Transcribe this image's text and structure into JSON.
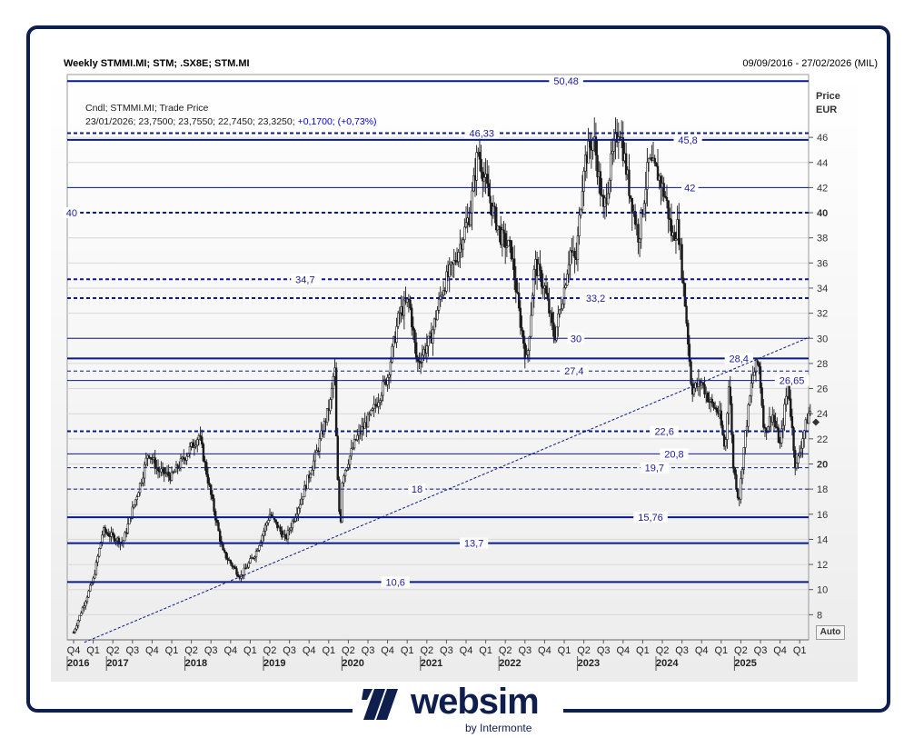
{
  "header": {
    "title": "Weekly STMMI.MI; STM; .SX8E; STM.MI",
    "date_range": "09/09/2016 - 27/02/2026 (MIL)"
  },
  "legend": {
    "line1": "Cndl; STMMI.MI; Trade Price",
    "line2_values": "23/01/2026; 23,7500; 23,7550; 22,7450; 23,3250;",
    "line2_change": "+0,1700; (+0,73%)"
  },
  "y_unit": {
    "line1": "Price",
    "line2": "EUR"
  },
  "auto_label": "Auto",
  "brand": {
    "name": "websim",
    "sub": "by Intermonte",
    "color": "#0e1f4d"
  },
  "colors": {
    "line": "#0a1a8c",
    "label": "#1a1aa0",
    "candle": "#1a1a1a",
    "grid": "#d8d8d8",
    "background_top": "#ffffff",
    "background_bottom": "#ececec"
  },
  "chart_data": {
    "type": "candlestick",
    "title": "Weekly STMMI.MI; STM; .SX8E; STM.MI",
    "ylabel": "Price EUR",
    "ylim": [
      6,
      51
    ],
    "y_ticks": [
      8,
      10,
      12,
      14,
      16,
      18,
      20,
      22,
      24,
      26,
      28,
      30,
      32,
      34,
      36,
      38,
      40,
      42,
      44,
      46
    ],
    "y_tick_labels": [
      "8",
      "10",
      "12",
      "14",
      "16",
      "18",
      "20",
      "22",
      "24",
      "26",
      "28",
      "30",
      "32",
      "34",
      "36",
      "38",
      "40",
      "42",
      "44",
      "46"
    ],
    "y_tick_bold": [
      "20",
      "40"
    ],
    "x_quarters": [
      "Q4",
      "Q1",
      "Q2",
      "Q3",
      "Q4",
      "Q1",
      "Q2",
      "Q3",
      "Q4",
      "Q1",
      "Q2",
      "Q3",
      "Q4",
      "Q1",
      "Q2",
      "Q3",
      "Q4",
      "Q1",
      "Q2",
      "Q3",
      "Q4",
      "Q1",
      "Q2",
      "Q3",
      "Q4",
      "Q1",
      "Q2",
      "Q3",
      "Q4",
      "Q1",
      "Q2",
      "Q3",
      "Q4",
      "Q1",
      "Q2",
      "Q3",
      "Q4",
      "Q1"
    ],
    "x_years": [
      {
        "label": "2016",
        "quarter_index": 0
      },
      {
        "label": "2017",
        "quarter_index": 2
      },
      {
        "label": "2018",
        "quarter_index": 6
      },
      {
        "label": "2019",
        "quarter_index": 10
      },
      {
        "label": "2020",
        "quarter_index": 14
      },
      {
        "label": "2021",
        "quarter_index": 18
      },
      {
        "label": "2022",
        "quarter_index": 22
      },
      {
        "label": "2023",
        "quarter_index": 26
      },
      {
        "label": "2024",
        "quarter_index": 30
      },
      {
        "label": "2025",
        "quarter_index": 34
      }
    ],
    "levels": [
      {
        "value": 50.48,
        "label": "50,48",
        "style": "solid",
        "weight": 2,
        "label_q": 25.1
      },
      {
        "value": 46.33,
        "label": "46,33",
        "style": "dashed",
        "weight": 2,
        "label_q": 20.8
      },
      {
        "value": 45.8,
        "label": "45,8",
        "style": "solid",
        "weight": 2,
        "label_q": 31.3
      },
      {
        "value": 42,
        "label": "42",
        "style": "solid",
        "weight": 1,
        "label_q": 31.4
      },
      {
        "value": 40,
        "label": "40",
        "style": "dashed",
        "weight": 2,
        "label_q": -0.1
      },
      {
        "value": 34.7,
        "label": "34,7",
        "style": "dashed",
        "weight": 2,
        "label_q": 11.8
      },
      {
        "value": 33.2,
        "label": "33,2",
        "style": "dashed",
        "weight": 2,
        "label_q": 26.6
      },
      {
        "value": 30,
        "label": "30",
        "style": "solid",
        "weight": 1,
        "label_q": 25.6
      },
      {
        "value": 28.4,
        "label": "28,4",
        "style": "solid",
        "weight": 2,
        "label_q": 33.9
      },
      {
        "value": 27.4,
        "label": "27,4",
        "style": "dashed",
        "weight": 1,
        "label_q": 25.5
      },
      {
        "value": 26.65,
        "label": "26,65",
        "style": "solid",
        "weight": 1,
        "label_q": 36.6
      },
      {
        "value": 22.6,
        "label": "22,6",
        "style": "dashed",
        "weight": 2,
        "label_q": 30.1
      },
      {
        "value": 20.8,
        "label": "20,8",
        "style": "solid",
        "weight": 1,
        "label_q": 30.6
      },
      {
        "value": 19.7,
        "label": "19,7",
        "style": "dashed",
        "weight": 1,
        "label_q": 29.6
      },
      {
        "value": 18,
        "label": "18",
        "style": "dashed",
        "weight": 1,
        "label_q": 17.5
      },
      {
        "value": 15.76,
        "label": "15,76",
        "style": "solid",
        "weight": 2,
        "label_q": 29.4
      },
      {
        "value": 13.7,
        "label": "13,7",
        "style": "solid",
        "weight": 2,
        "label_q": 20.4
      },
      {
        "value": 10.6,
        "label": "10,6",
        "style": "solid",
        "weight": 2,
        "label_q": 16.4
      }
    ],
    "trendline": {
      "style": "dashed",
      "from": {
        "q": 0.55,
        "v": 5.8
      },
      "to": {
        "q": 37.5,
        "v": 30.1
      }
    },
    "last_close": 23.325,
    "anchors": [
      [
        0,
        6.6
      ],
      [
        1,
        10.8
      ],
      [
        1.5,
        14.7
      ],
      [
        2.5,
        13.7
      ],
      [
        3.5,
        19
      ],
      [
        3.8,
        21
      ],
      [
        4.3,
        19.5
      ],
      [
        5,
        19
      ],
      [
        6.4,
        22.3
      ],
      [
        7,
        17.5
      ],
      [
        7.6,
        13
      ],
      [
        8.5,
        11
      ],
      [
        9.3,
        13
      ],
      [
        10,
        16
      ],
      [
        10.8,
        14
      ],
      [
        11.6,
        17.2
      ],
      [
        12.4,
        21
      ],
      [
        13.1,
        25
      ],
      [
        13.3,
        27.9
      ],
      [
        13.4,
        21
      ],
      [
        13.5,
        17
      ],
      [
        13.6,
        15
      ],
      [
        13.7,
        19
      ],
      [
        14.4,
        22
      ],
      [
        15.2,
        24
      ],
      [
        16,
        27
      ],
      [
        16.6,
        32
      ],
      [
        17.1,
        33
      ],
      [
        17.5,
        28
      ],
      [
        18.2,
        30
      ],
      [
        18.8,
        34
      ],
      [
        19.4,
        36
      ],
      [
        20.2,
        40
      ],
      [
        20.6,
        45
      ],
      [
        21.2,
        41
      ],
      [
        21.8,
        38
      ],
      [
        22.3,
        37
      ],
      [
        22.7,
        32
      ],
      [
        23.1,
        28
      ],
      [
        23.5,
        36
      ],
      [
        24,
        34
      ],
      [
        24.5,
        30
      ],
      [
        25,
        34
      ],
      [
        25.3,
        37
      ],
      [
        25.6,
        36
      ],
      [
        26,
        44
      ],
      [
        26.5,
        46
      ],
      [
        27,
        40
      ],
      [
        27.4,
        44
      ],
      [
        27.8,
        47
      ],
      [
        28.3,
        42
      ],
      [
        28.8,
        38
      ],
      [
        29.3,
        44
      ],
      [
        29.8,
        43
      ],
      [
        30.2,
        41
      ],
      [
        30.5,
        38
      ],
      [
        30.8,
        39
      ],
      [
        31.2,
        32
      ],
      [
        31.5,
        25.9
      ],
      [
        32,
        26.5
      ],
      [
        32.4,
        25
      ],
      [
        32.9,
        24
      ],
      [
        33.2,
        21
      ],
      [
        33.4,
        27
      ],
      [
        33.6,
        20
      ],
      [
        33.9,
        17
      ],
      [
        34.2,
        22
      ],
      [
        34.6,
        27
      ],
      [
        34.9,
        28.2
      ],
      [
        35.2,
        22.5
      ],
      [
        35.6,
        24
      ],
      [
        36,
        21.5
      ],
      [
        36.4,
        26.5
      ],
      [
        36.8,
        19.5
      ],
      [
        37.2,
        22.5
      ],
      [
        37.5,
        24.2
      ]
    ]
  }
}
